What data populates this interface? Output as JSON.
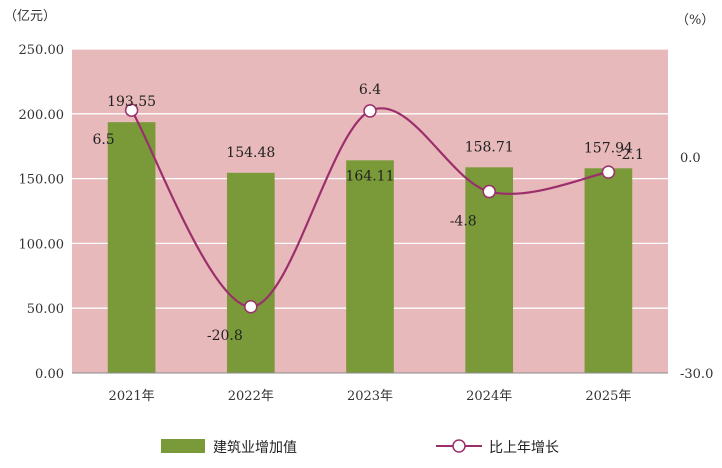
{
  "chart_data": {
    "type": "bar",
    "categories": [
      "2021年",
      "2022年",
      "2023年",
      "2024年",
      "2025年"
    ],
    "y_left_unit": "（亿元）",
    "y_right_unit": "（%）",
    "y_left_ticks": [
      "0.00",
      "50.00",
      "100.00",
      "150.00",
      "200.00",
      "250.00"
    ],
    "y_right_ticks": [
      "-30.0",
      "0.0"
    ],
    "ylim_left": [
      0,
      250
    ],
    "ylim_right": [
      -30,
      15
    ],
    "series": [
      {
        "name": "建筑业增加值",
        "type": "bar",
        "axis": "left",
        "values": [
          193.55,
          154.48,
          164.11,
          158.71,
          157.94
        ],
        "labels": [
          "193.55",
          "154.48",
          "164.11",
          "158.71",
          "157.94"
        ],
        "color": "#7a9a3a"
      },
      {
        "name": "比上年增长",
        "type": "line",
        "axis": "right",
        "values": [
          6.5,
          -20.8,
          6.4,
          -4.8,
          -2.1
        ],
        "labels": [
          "6.5",
          "-20.8",
          "6.4",
          "-4.8",
          "-2.1"
        ],
        "color": "#9b2f6b"
      }
    ],
    "plot_background": "#e8b9bb",
    "grid": true,
    "legend_position": "bottom"
  }
}
